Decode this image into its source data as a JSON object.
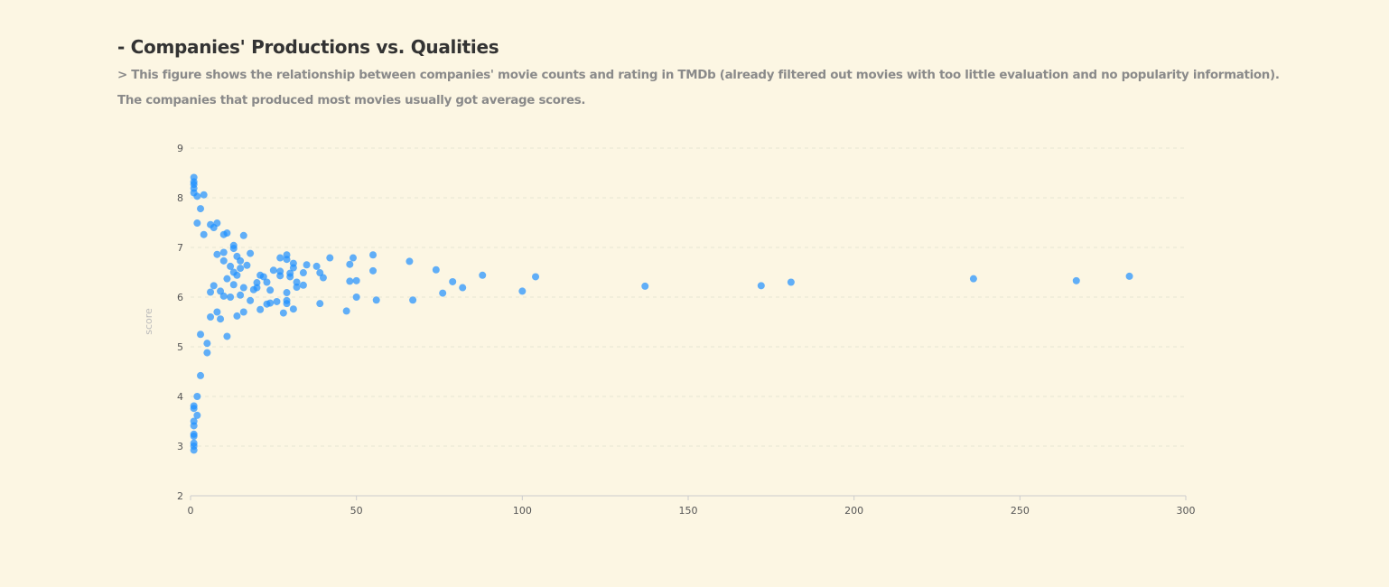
{
  "header": {
    "title": "- Companies' Productions vs. Qualities",
    "description_line1": "> This figure shows the relationship between companies' movie counts and rating in TMDb (already filtered out movies with too little evaluation and no popularity information).",
    "description_line2": "The companies that produced most movies usually got average scores."
  },
  "colors": {
    "background": "#fcf6e3",
    "point": "#1e90ff",
    "grid": "#e6e6d3",
    "axis": "#cccccc"
  },
  "chart_data": {
    "type": "scatter",
    "title": "",
    "xlabel": "",
    "ylabel": "score",
    "xlim": [
      0,
      300
    ],
    "ylim": [
      2,
      9
    ],
    "xticks": [
      0,
      50,
      100,
      150,
      200,
      250,
      300
    ],
    "yticks": [
      2,
      3,
      4,
      5,
      6,
      7,
      8,
      9
    ],
    "grid": "horizontal dashed",
    "point_color": "#1e90ff",
    "points": [
      [
        283,
        6.42
      ],
      [
        267,
        6.33
      ],
      [
        236,
        6.37
      ],
      [
        181,
        6.3
      ],
      [
        172,
        6.23
      ],
      [
        137,
        6.22
      ],
      [
        104,
        6.41
      ],
      [
        100,
        6.12
      ],
      [
        88,
        6.44
      ],
      [
        82,
        6.19
      ],
      [
        79,
        6.31
      ],
      [
        76,
        6.08
      ],
      [
        74,
        6.55
      ],
      [
        67,
        5.94
      ],
      [
        66,
        6.72
      ],
      [
        56,
        5.94
      ],
      [
        55,
        6.85
      ],
      [
        55,
        6.53
      ],
      [
        50,
        6.33
      ],
      [
        50,
        6.0
      ],
      [
        49,
        6.79
      ],
      [
        48,
        6.66
      ],
      [
        48,
        6.32
      ],
      [
        47,
        5.72
      ],
      [
        42,
        6.79
      ],
      [
        40,
        6.39
      ],
      [
        39,
        5.87
      ],
      [
        39,
        6.49
      ],
      [
        38,
        6.62
      ],
      [
        35,
        6.65
      ],
      [
        34,
        6.49
      ],
      [
        34,
        6.24
      ],
      [
        32,
        6.3
      ],
      [
        32,
        6.2
      ],
      [
        31,
        6.59
      ],
      [
        31,
        6.68
      ],
      [
        31,
        5.76
      ],
      [
        30,
        6.48
      ],
      [
        30,
        6.41
      ],
      [
        29,
        6.85
      ],
      [
        29,
        6.76
      ],
      [
        29,
        5.93
      ],
      [
        29,
        5.87
      ],
      [
        29,
        6.09
      ],
      [
        28,
        5.68
      ],
      [
        27,
        6.43
      ],
      [
        27,
        6.52
      ],
      [
        27,
        6.79
      ],
      [
        26,
        5.91
      ],
      [
        25,
        6.54
      ],
      [
        24,
        6.14
      ],
      [
        24,
        5.88
      ],
      [
        23,
        5.86
      ],
      [
        23,
        6.3
      ],
      [
        22,
        6.41
      ],
      [
        21,
        6.44
      ],
      [
        21,
        5.75
      ],
      [
        20,
        6.19
      ],
      [
        20,
        6.29
      ],
      [
        19,
        6.15
      ],
      [
        18,
        5.93
      ],
      [
        18,
        6.88
      ],
      [
        17,
        6.64
      ],
      [
        16,
        7.24
      ],
      [
        16,
        5.7
      ],
      [
        16,
        6.19
      ],
      [
        15,
        6.04
      ],
      [
        15,
        6.58
      ],
      [
        15,
        6.73
      ],
      [
        14,
        5.62
      ],
      [
        14,
        6.82
      ],
      [
        14,
        6.44
      ],
      [
        13,
        6.98
      ],
      [
        13,
        7.04
      ],
      [
        13,
        6.25
      ],
      [
        13,
        6.5
      ],
      [
        12,
        6.0
      ],
      [
        12,
        6.62
      ],
      [
        11,
        5.21
      ],
      [
        11,
        7.29
      ],
      [
        11,
        6.37
      ],
      [
        10,
        7.26
      ],
      [
        10,
        6.9
      ],
      [
        10,
        6.73
      ],
      [
        10,
        6.02
      ],
      [
        9,
        5.56
      ],
      [
        9,
        6.12
      ],
      [
        8,
        7.49
      ],
      [
        8,
        6.86
      ],
      [
        8,
        5.7
      ],
      [
        7,
        7.4
      ],
      [
        7,
        6.23
      ],
      [
        6,
        7.46
      ],
      [
        6,
        5.6
      ],
      [
        6,
        6.1
      ],
      [
        5,
        5.07
      ],
      [
        5,
        4.88
      ],
      [
        4,
        8.06
      ],
      [
        4,
        7.26
      ],
      [
        3,
        4.42
      ],
      [
        3,
        5.25
      ],
      [
        3,
        7.78
      ],
      [
        2,
        3.62
      ],
      [
        2,
        4.0
      ],
      [
        2,
        8.03
      ],
      [
        2,
        7.49
      ],
      [
        1,
        2.92
      ],
      [
        1,
        3.0
      ],
      [
        1,
        3.06
      ],
      [
        1,
        3.2
      ],
      [
        1,
        3.24
      ],
      [
        1,
        3.41
      ],
      [
        1,
        3.5
      ],
      [
        1,
        3.76
      ],
      [
        1,
        3.81
      ],
      [
        1,
        8.41
      ],
      [
        1,
        8.32
      ],
      [
        1,
        8.27
      ],
      [
        1,
        8.19
      ],
      [
        1,
        8.1
      ]
    ]
  }
}
